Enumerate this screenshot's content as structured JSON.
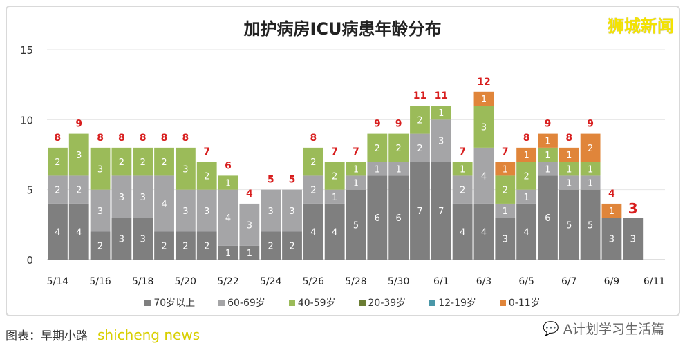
{
  "chart_data": {
    "type": "bar",
    "stacked": true,
    "title": "加护病房ICU病患年龄分布",
    "categories": [
      "5/14",
      "5/15",
      "5/16",
      "5/17",
      "5/18",
      "5/19",
      "5/20",
      "5/21",
      "5/22",
      "5/23",
      "5/24",
      "5/25",
      "5/26",
      "5/27",
      "5/28",
      "5/29",
      "5/30",
      "5/31",
      "6/1",
      "6/2",
      "6/3",
      "6/4",
      "6/5",
      "6/6",
      "6/7",
      "6/8",
      "6/9",
      "6/10",
      "6/11"
    ],
    "tick_labels": [
      "5/14",
      "5/16",
      "5/18",
      "5/20",
      "5/22",
      "5/24",
      "5/26",
      "5/28",
      "5/30",
      "6/1",
      "6/3",
      "6/5",
      "6/7",
      "6/9",
      "6/11"
    ],
    "yticks": [
      0,
      5,
      10,
      15
    ],
    "ylim": [
      0,
      15
    ],
    "grid": true,
    "legend_position": "bottom",
    "series": [
      {
        "name": "70岁以上",
        "color": "#7f7f7f",
        "values": [
          4,
          4,
          2,
          3,
          3,
          2,
          2,
          2,
          1,
          1,
          2,
          2,
          4,
          4,
          5,
          6,
          6,
          7,
          7,
          4,
          4,
          3,
          4,
          6,
          5,
          5,
          3,
          3,
          0
        ]
      },
      {
        "name": "60-69岁",
        "color": "#a5a5a7",
        "values": [
          2,
          2,
          3,
          3,
          3,
          4,
          3,
          3,
          4,
          3,
          3,
          3,
          2,
          1,
          1,
          1,
          1,
          2,
          3,
          2,
          4,
          1,
          1,
          1,
          1,
          1,
          0,
          0,
          0
        ]
      },
      {
        "name": "40-59岁",
        "color": "#9bbb59",
        "values": [
          2,
          3,
          3,
          2,
          2,
          2,
          3,
          2,
          1,
          0,
          0,
          0,
          2,
          2,
          1,
          2,
          2,
          2,
          1,
          1,
          3,
          2,
          2,
          1,
          1,
          1,
          0,
          0,
          0
        ]
      },
      {
        "name": "20-39岁",
        "color": "#6b7d34",
        "values": [
          0,
          0,
          0,
          0,
          0,
          0,
          0,
          0,
          0,
          0,
          0,
          0,
          0,
          0,
          0,
          0,
          0,
          0,
          0,
          0,
          0,
          0,
          0,
          0,
          0,
          0,
          0,
          0,
          0
        ]
      },
      {
        "name": "12-19岁",
        "color": "#4a97a8",
        "values": [
          0,
          0,
          0,
          0,
          0,
          0,
          0,
          0,
          0,
          0,
          0,
          0,
          0,
          0,
          0,
          0,
          0,
          0,
          0,
          0,
          0,
          0,
          0,
          0,
          0,
          0,
          0,
          0,
          0
        ]
      },
      {
        "name": "0-11岁",
        "color": "#e0853a",
        "values": [
          0,
          0,
          0,
          0,
          0,
          0,
          0,
          0,
          0,
          0,
          0,
          0,
          0,
          0,
          0,
          0,
          0,
          0,
          0,
          0,
          1,
          1,
          1,
          1,
          1,
          2,
          1,
          0,
          0
        ]
      }
    ],
    "totals": [
      8,
      9,
      8,
      8,
      8,
      8,
      8,
      7,
      6,
      4,
      5,
      5,
      8,
      7,
      7,
      9,
      9,
      11,
      11,
      7,
      12,
      7,
      8,
      9,
      8,
      9,
      4,
      3,
      null
    ]
  },
  "watermark": "狮城新闻",
  "credit": "图表：早期小路",
  "credit_overlay": "shicheng news",
  "wechat_label": "A计划学习生活篇"
}
